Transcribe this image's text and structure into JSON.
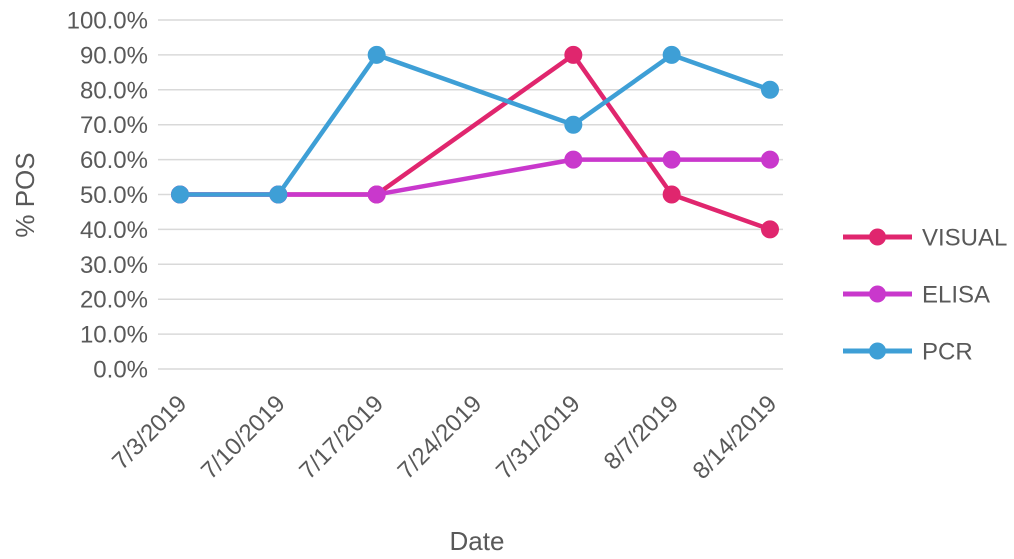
{
  "chart_data": {
    "type": "line",
    "xlabel": "Date",
    "ylabel": "% POS",
    "x": [
      "7/3/2019",
      "7/10/2019",
      "7/17/2019",
      "7/24/2019",
      "7/31/2019",
      "8/7/2019",
      "8/14/2019"
    ],
    "ylim": [
      0,
      100
    ],
    "yticks": [
      "0.0%",
      "10.0%",
      "20.0%",
      "30.0%",
      "40.0%",
      "50.0%",
      "60.0%",
      "70.0%",
      "80.0%",
      "90.0%",
      "100.0%"
    ],
    "grid": true,
    "legend": "right",
    "series": [
      {
        "name": "VISUAL",
        "color": "#E0266E",
        "values": [
          50,
          50,
          50,
          null,
          90,
          50,
          40
        ]
      },
      {
        "name": "ELISA",
        "color": "#C938CC",
        "values": [
          50,
          50,
          50,
          null,
          60,
          60,
          60
        ]
      },
      {
        "name": "PCR",
        "color": "#3E9FD6",
        "values": [
          50,
          50,
          90,
          null,
          70,
          90,
          80
        ]
      }
    ]
  }
}
